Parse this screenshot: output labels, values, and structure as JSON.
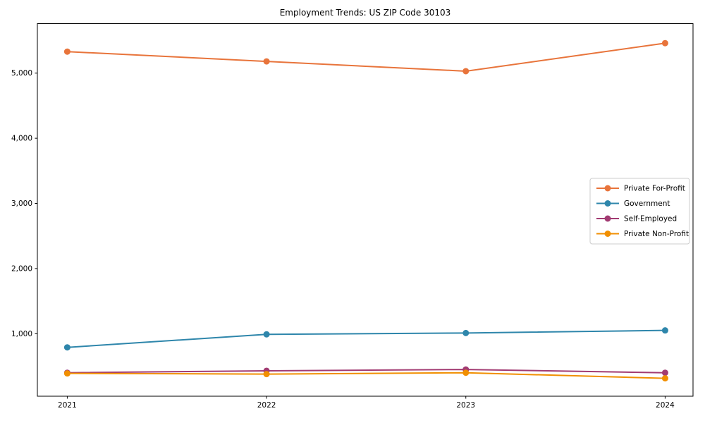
{
  "figure": {
    "title": "Employment Trends: US ZIP Code 30103"
  },
  "chart_data": {
    "type": "line",
    "title": "Employment Trends: US ZIP Code 30103",
    "xlabel": "",
    "ylabel": "",
    "x": [
      2021,
      2022,
      2023,
      2024
    ],
    "x_tick_labels": [
      "2021",
      "2022",
      "2023",
      "2024"
    ],
    "y_ticks": [
      1000,
      2000,
      3000,
      4000,
      5000
    ],
    "y_tick_labels": [
      "1,000",
      "2,000",
      "3,000",
      "4,000",
      "5,000"
    ],
    "xlim": [
      2020.85,
      2024.14
    ],
    "ylim": [
      40,
      5760
    ],
    "grid": false,
    "legend_position": "center-right",
    "marker": "circle",
    "series": [
      {
        "name": "Private For-Profit",
        "color": "#e8743b",
        "values": [
          5330,
          5180,
          5030,
          5460
        ]
      },
      {
        "name": "Government",
        "color": "#2e86ab",
        "values": [
          790,
          990,
          1010,
          1050
        ]
      },
      {
        "name": "Self-Employed",
        "color": "#a23b72",
        "values": [
          400,
          430,
          450,
          400
        ]
      },
      {
        "name": "Private Non-Profit",
        "color": "#f18f01",
        "values": [
          390,
          380,
          400,
          315
        ]
      }
    ],
    "colors": {
      "frame": "#000000",
      "tick_label": "#000000",
      "legend_border": "#cccccc",
      "background": "#ffffff"
    }
  }
}
